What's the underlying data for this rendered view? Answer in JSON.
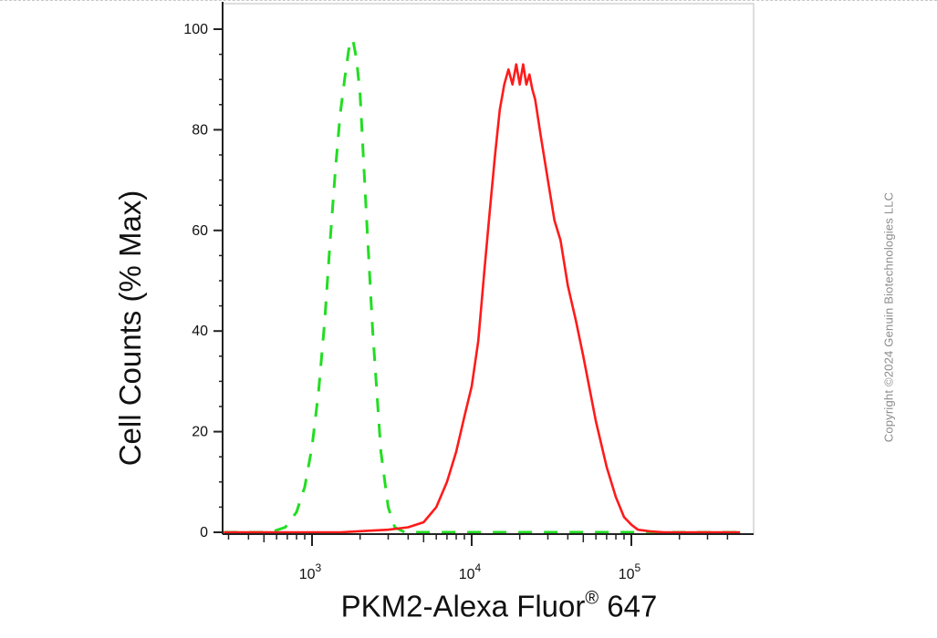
{
  "chart_data": {
    "type": "line",
    "x_scale": "log",
    "xlim": [
      280,
      480000
    ],
    "ylim": [
      -1,
      105
    ],
    "xlabel_main": "PKM2-Alexa Fluor",
    "xlabel_sup": "®",
    "xlabel_tail": " 647",
    "ylabel": "Cell Counts (% Max)",
    "y_ticks": [
      "0",
      "20",
      "40",
      "60",
      "80",
      "100"
    ],
    "y_tick_values": [
      0,
      20,
      40,
      60,
      80,
      100
    ],
    "x_major_ticks": [
      1000,
      10000,
      100000
    ],
    "x_tick_labels": [
      {
        "base": "10",
        "exp": "3"
      },
      {
        "base": "10",
        "exp": "4"
      },
      {
        "base": "10",
        "exp": "5"
      }
    ],
    "grid": false,
    "series": [
      {
        "color": "#22dd22",
        "style": "dashed",
        "x": [
          280,
          550,
          680,
          800,
          900,
          1000,
          1100,
          1200,
          1300,
          1400,
          1500,
          1600,
          1700,
          1800,
          1900,
          2000,
          2200,
          2400,
          2700,
          3000,
          3300,
          3800,
          5000,
          10000,
          50000,
          480000
        ],
        "y": [
          0,
          0,
          1,
          4,
          9,
          17,
          28,
          42,
          58,
          72,
          83,
          90,
          96,
          98,
          94,
          87,
          62,
          40,
          16,
          5,
          1,
          0,
          0,
          0,
          0,
          0
        ]
      },
      {
        "color": "#ff1a1a",
        "style": "solid",
        "x": [
          280,
          1500,
          3000,
          4000,
          5000,
          6000,
          7000,
          8000,
          9000,
          10000,
          11000,
          12000,
          13000,
          14000,
          15000,
          16000,
          17000,
          18000,
          19000,
          20000,
          21000,
          22000,
          23000,
          24000,
          25000,
          27000,
          30000,
          33000,
          36000,
          40000,
          45000,
          50000,
          60000,
          70000,
          80000,
          90000,
          100000,
          110000,
          130000,
          160000,
          480000
        ],
        "y": [
          0,
          0,
          0.5,
          1,
          2,
          5,
          10,
          16,
          23,
          29,
          38,
          52,
          64,
          75,
          84,
          89,
          92,
          89,
          93,
          89,
          93,
          89,
          91,
          88,
          86,
          79,
          70,
          62,
          58,
          49,
          42,
          35,
          22,
          13,
          7,
          3,
          1.5,
          0.5,
          0.2,
          0,
          0
        ]
      }
    ]
  },
  "watermark": "Copyright ©2024 Genuin Biotechnologies LLC"
}
